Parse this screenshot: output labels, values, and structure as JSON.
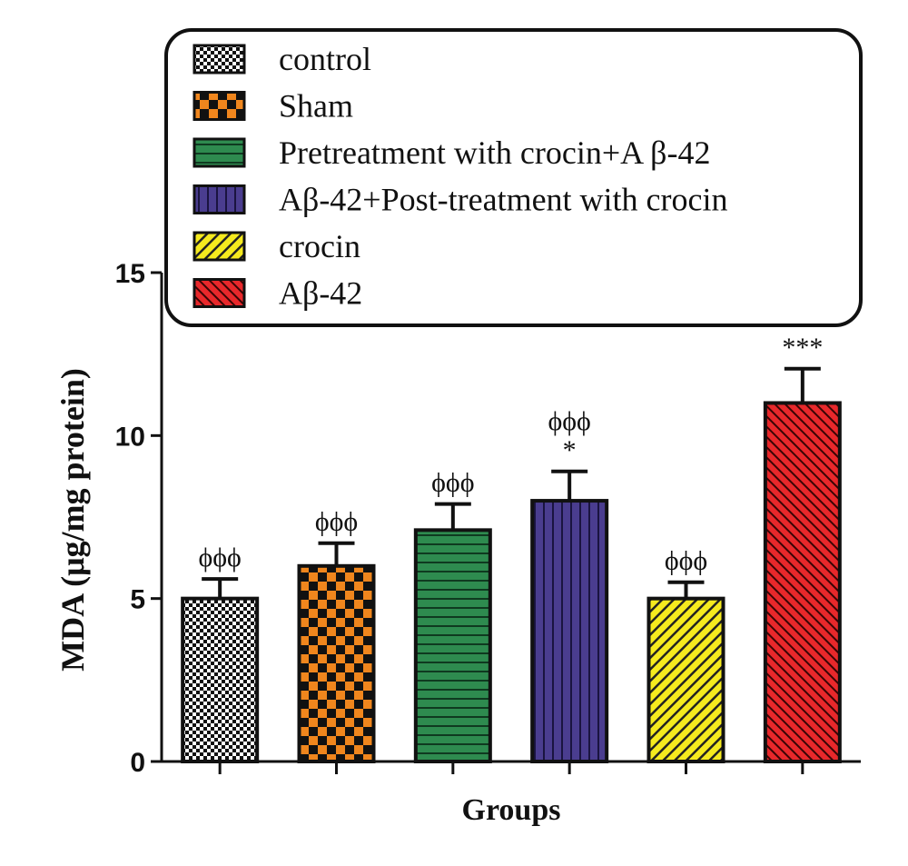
{
  "chart_data": {
    "type": "bar",
    "title": "",
    "xlabel": "Groups",
    "ylabel": "MDA (μg/mg protein)",
    "ylim": [
      0,
      15
    ],
    "yticks": [
      "0",
      "5",
      "10",
      "15"
    ],
    "categories": [
      "control",
      "Sham",
      "Pretreatment with crocin+A β-42",
      "Aβ-42+Post-treatment with crocin",
      "crocin",
      "Aβ-42"
    ],
    "values": [
      5.0,
      6.0,
      7.1,
      8.0,
      5.0,
      11.0
    ],
    "errors": [
      0.6,
      0.7,
      0.8,
      0.9,
      0.5,
      1.05
    ],
    "significance": [
      [
        "ϕϕϕ"
      ],
      [
        "ϕϕϕ"
      ],
      [
        "ϕϕϕ"
      ],
      [
        "ϕϕϕ",
        "*"
      ],
      [
        "ϕϕϕ"
      ],
      [
        "***"
      ]
    ],
    "colors": [
      "#ffffff",
      "#f0861d",
      "#2e8b4f",
      "#4a3d8f",
      "#f5ea1e",
      "#e8282b"
    ],
    "patterns": [
      "checker-fine",
      "checker",
      "horizontal",
      "vertical",
      "diag-up",
      "diag-down"
    ],
    "legend_position": "top",
    "grid": false
  }
}
